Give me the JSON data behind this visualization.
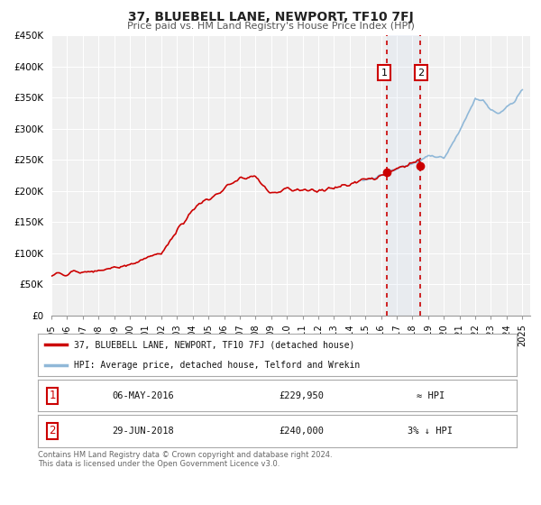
{
  "title": "37, BLUEBELL LANE, NEWPORT, TF10 7FJ",
  "subtitle": "Price paid vs. HM Land Registry's House Price Index (HPI)",
  "ylim": [
    0,
    450000
  ],
  "yticks": [
    0,
    50000,
    100000,
    150000,
    200000,
    250000,
    300000,
    350000,
    400000,
    450000
  ],
  "ytick_labels": [
    "£0",
    "£50K",
    "£100K",
    "£150K",
    "£200K",
    "£250K",
    "£300K",
    "£350K",
    "£400K",
    "£450K"
  ],
  "xlim_start": 1995.0,
  "xlim_end": 2025.5,
  "xticks": [
    1995,
    1996,
    1997,
    1998,
    1999,
    2000,
    2001,
    2002,
    2003,
    2004,
    2005,
    2006,
    2007,
    2008,
    2009,
    2010,
    2011,
    2012,
    2013,
    2014,
    2015,
    2016,
    2017,
    2018,
    2019,
    2020,
    2021,
    2022,
    2023,
    2024,
    2025
  ],
  "background_color": "#ffffff",
  "plot_bg_color": "#f0f0f0",
  "grid_color": "#ffffff",
  "hpi_line_color": "#90b8d8",
  "price_line_color": "#cc0000",
  "marker_color": "#cc0000",
  "vline_color": "#cc0000",
  "marker1_x": 2016.35,
  "marker1_y": 229950,
  "marker2_x": 2018.49,
  "marker2_y": 240000,
  "legend_label_price": "37, BLUEBELL LANE, NEWPORT, TF10 7FJ (detached house)",
  "legend_label_hpi": "HPI: Average price, detached house, Telford and Wrekin",
  "footnote_line1": "Contains HM Land Registry data © Crown copyright and database right 2024.",
  "footnote_line2": "This data is licensed under the Open Government Licence v3.0.",
  "table_row1_num": "1",
  "table_row1_date": "06-MAY-2016",
  "table_row1_price": "£229,950",
  "table_row1_hpi": "≈ HPI",
  "table_row2_num": "2",
  "table_row2_date": "29-JUN-2018",
  "table_row2_price": "£240,000",
  "table_row2_hpi": "3% ↓ HPI"
}
